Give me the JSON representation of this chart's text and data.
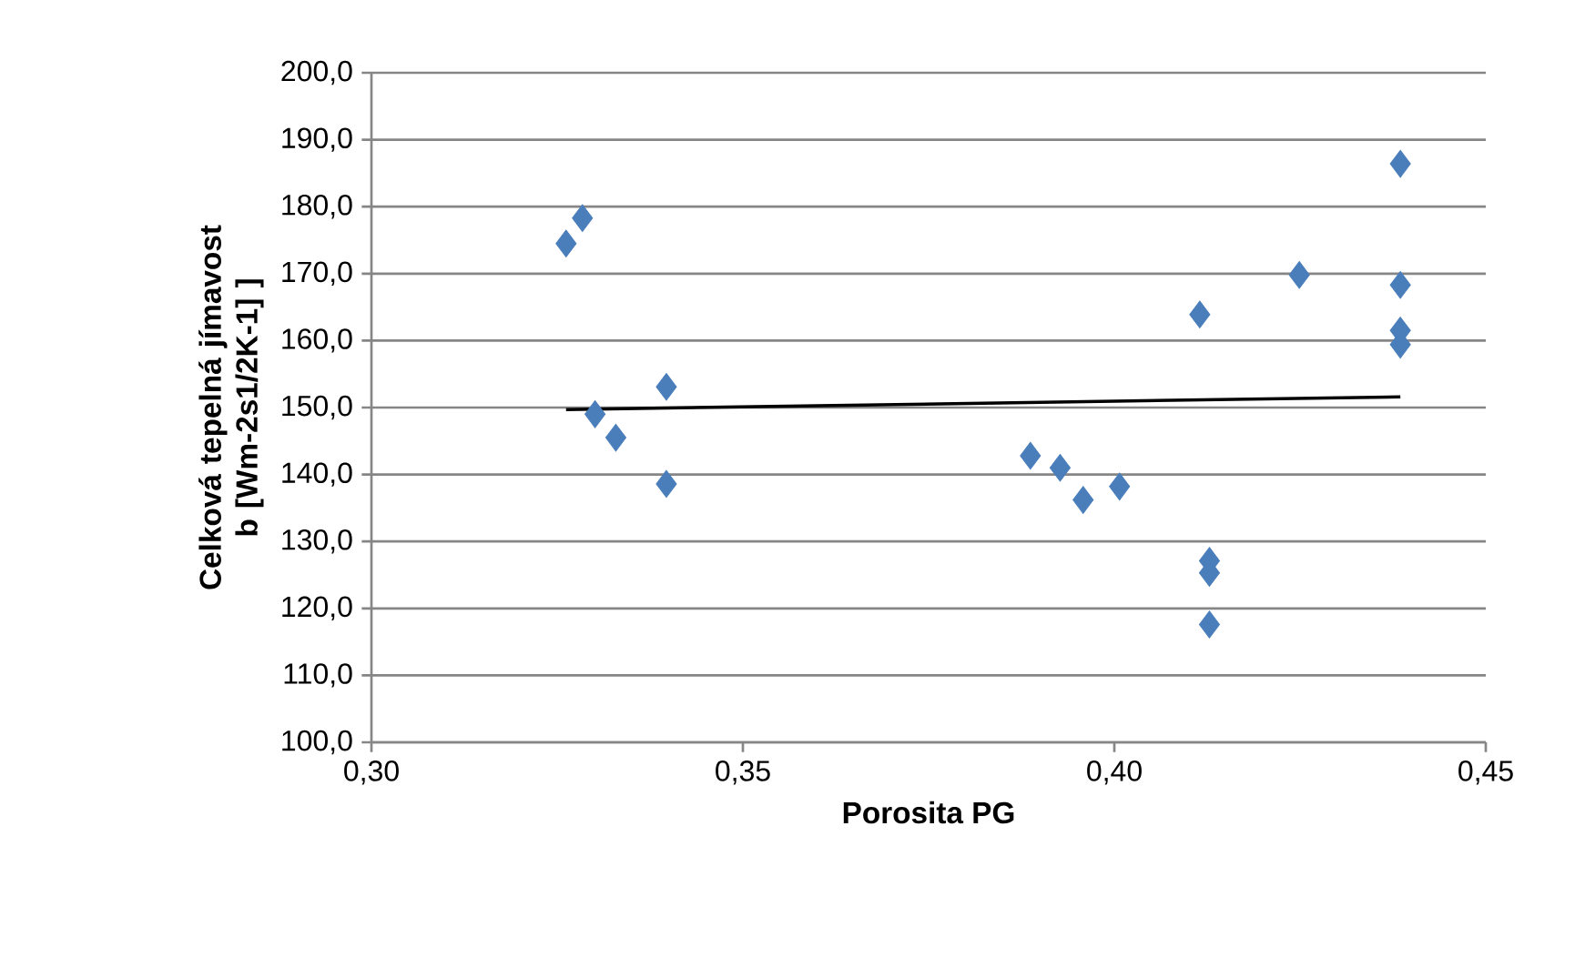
{
  "chart_data": {
    "type": "scatter",
    "xlabel": "Porosita PG",
    "ylabel": "Celková tepelná jímavost b [Wm-2s1/2K-1] ]",
    "xlim": [
      0.3,
      0.45
    ],
    "ylim": [
      100,
      200
    ],
    "xticks": [
      {
        "value": 0.3,
        "label": "0,30"
      },
      {
        "value": 0.35,
        "label": "0,35"
      },
      {
        "value": 0.4,
        "label": "0,40"
      },
      {
        "value": 0.45,
        "label": "0,45"
      }
    ],
    "yticks": [
      {
        "value": 100,
        "label": "100,0"
      },
      {
        "value": 110,
        "label": "110,0"
      },
      {
        "value": 120,
        "label": "120,0"
      },
      {
        "value": 130,
        "label": "130,0"
      },
      {
        "value": 140,
        "label": "140,0"
      },
      {
        "value": 150,
        "label": "150,0"
      },
      {
        "value": 160,
        "label": "160,0"
      },
      {
        "value": 170,
        "label": "170,0"
      },
      {
        "value": 180,
        "label": "180,0"
      },
      {
        "value": 190,
        "label": "190,0"
      },
      {
        "value": 200,
        "label": "200,0"
      }
    ],
    "grid": "y",
    "series": [
      {
        "color": "#4a7ebb",
        "marker": "diamond",
        "x": [
          0.3262,
          0.3284,
          0.3301,
          0.3329,
          0.3397,
          0.3397,
          0.3887,
          0.3927,
          0.3958,
          0.4007,
          0.4115,
          0.4128,
          0.4128,
          0.4128,
          0.4249,
          0.4385,
          0.4385,
          0.4385,
          0.4385
        ],
        "values": [
          174.5,
          178.3,
          149.0,
          145.5,
          153.1,
          138.6,
          142.8,
          141.0,
          136.2,
          138.2,
          163.9,
          127.1,
          125.3,
          117.6,
          169.8,
          186.4,
          168.3,
          161.5,
          159.4
        ]
      },
      {
        "type": "line",
        "color": "#000000",
        "marker": "none",
        "x": [
          0.3262,
          0.4385
        ],
        "values": [
          149.7,
          151.6
        ]
      }
    ]
  }
}
